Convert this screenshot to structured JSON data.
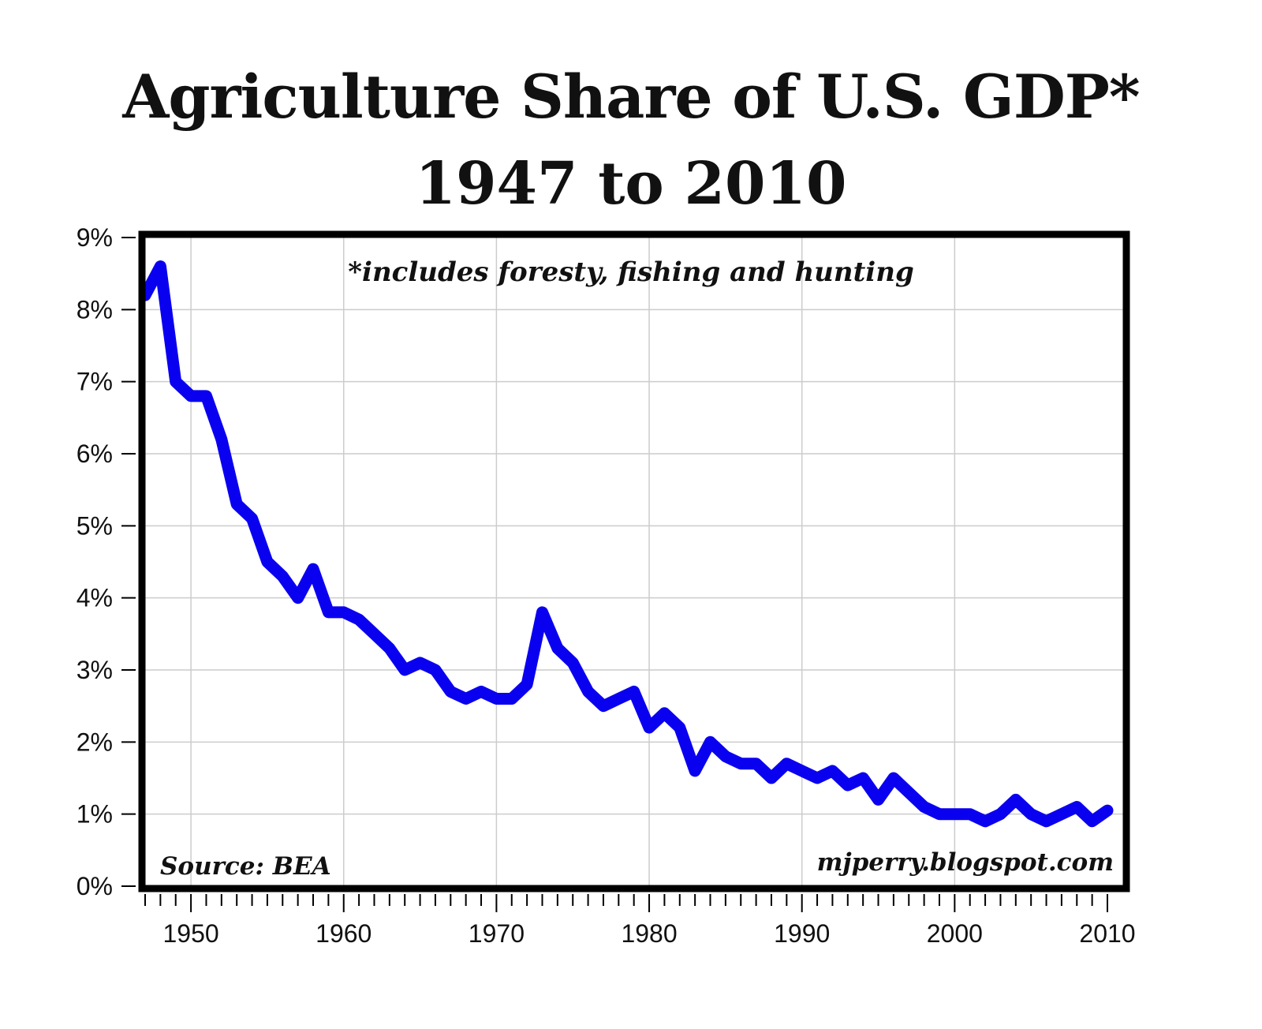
{
  "chart_data": {
    "type": "line",
    "title": "Agriculture Share of U.S. GDP*",
    "subtitle": "1947 to 2010",
    "annotation": "*includes foresty, fishing and hunting",
    "source": "Source: BEA",
    "watermark": "mjperry.blogspot.com",
    "xlabel": "",
    "ylabel": "",
    "xlim": [
      1947,
      2010
    ],
    "ylim": [
      0,
      9
    ],
    "grid": true,
    "x_ticks": [
      "1950",
      "1960",
      "1970",
      "1980",
      "1990",
      "2000",
      "2010"
    ],
    "x_tick_values": [
      1950,
      1960,
      1970,
      1980,
      1990,
      2000,
      2010
    ],
    "y_ticks": [
      "0%",
      "1%",
      "2%",
      "3%",
      "4%",
      "5%",
      "6%",
      "7%",
      "8%",
      "9%"
    ],
    "y_tick_values": [
      0,
      1,
      2,
      3,
      4,
      5,
      6,
      7,
      8,
      9
    ],
    "series": [
      {
        "name": "Agriculture share of GDP (%)",
        "color": "#0a00f0",
        "x": [
          1947,
          1948,
          1949,
          1950,
          1951,
          1952,
          1953,
          1954,
          1955,
          1956,
          1957,
          1958,
          1959,
          1960,
          1961,
          1962,
          1963,
          1964,
          1965,
          1966,
          1967,
          1968,
          1969,
          1970,
          1971,
          1972,
          1973,
          1974,
          1975,
          1976,
          1977,
          1978,
          1979,
          1980,
          1981,
          1982,
          1983,
          1984,
          1985,
          1986,
          1987,
          1988,
          1989,
          1990,
          1991,
          1992,
          1993,
          1994,
          1995,
          1996,
          1997,
          1998,
          1999,
          2000,
          2001,
          2002,
          2003,
          2004,
          2005,
          2006,
          2007,
          2008,
          2009,
          2010
        ],
        "values": [
          8.2,
          8.6,
          7.0,
          6.8,
          6.8,
          6.2,
          5.3,
          5.1,
          4.5,
          4.3,
          4.0,
          4.4,
          3.8,
          3.8,
          3.7,
          3.5,
          3.3,
          3.0,
          3.1,
          3.0,
          2.7,
          2.6,
          2.7,
          2.6,
          2.6,
          2.8,
          3.8,
          3.3,
          3.1,
          2.7,
          2.5,
          2.6,
          2.7,
          2.2,
          2.4,
          2.2,
          1.6,
          2.0,
          1.8,
          1.7,
          1.7,
          1.5,
          1.7,
          1.6,
          1.5,
          1.6,
          1.4,
          1.5,
          1.2,
          1.5,
          1.3,
          1.1,
          1.0,
          1.0,
          1.0,
          0.9,
          1.0,
          1.2,
          1.0,
          0.9,
          1.0,
          1.1,
          0.9,
          1.05
        ]
      }
    ]
  }
}
